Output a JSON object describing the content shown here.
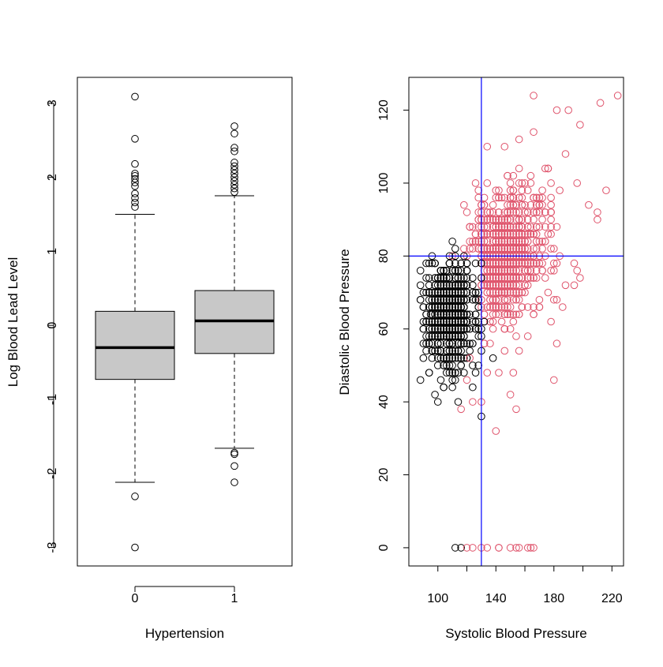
{
  "chart_data": [
    {
      "type": "box",
      "xlabel": "Hypertension",
      "ylabel": "Log Blood Lead Level",
      "ylim": [
        -3.25,
        3.35
      ],
      "yticks": [
        -3,
        -2,
        -1,
        0,
        1,
        2,
        3
      ],
      "ytick_labels": [
        "-3",
        "-2",
        "-1",
        "0",
        "1",
        "2",
        "3"
      ],
      "categories": [
        "0",
        "1"
      ],
      "box_fill": "#c8c8c8",
      "boxes": [
        {
          "category": "0",
          "whisker_low": -2.12,
          "q1": -0.73,
          "median": -0.3,
          "q3": 0.19,
          "whisker_high": 1.5,
          "outliers": [
            3.09,
            2.52,
            2.18,
            2.05,
            2.02,
            1.98,
            1.93,
            1.88,
            1.78,
            1.72,
            1.66,
            1.6,
            -2.31,
            -3.0
          ]
        },
        {
          "category": "1",
          "whisker_low": -1.66,
          "q1": -0.38,
          "median": 0.06,
          "q3": 0.47,
          "whisker_high": 1.75,
          "outliers": [
            2.69,
            2.59,
            2.4,
            2.35,
            2.2,
            2.15,
            2.1,
            2.05,
            2.0,
            1.95,
            1.9,
            1.85,
            1.8,
            -1.72,
            -1.74,
            -1.9,
            -2.12
          ]
        }
      ]
    },
    {
      "type": "scatter",
      "xlabel": "Systolic Blood Pressure",
      "ylabel": "Diastolic Blood Pressure",
      "xlim": [
        80,
        228
      ],
      "ylim": [
        -5,
        129
      ],
      "xticks": [
        100,
        140,
        180,
        220
      ],
      "xtick_labels": [
        "100",
        "140",
        "180",
        "220"
      ],
      "xticks_minor": [
        120,
        160,
        200
      ],
      "yticks": [
        0,
        20,
        40,
        60,
        80,
        100,
        120
      ],
      "ytick_labels": [
        "0",
        "20",
        "40",
        "60",
        "80",
        "100",
        "120"
      ],
      "reference_lines": {
        "x": 130,
        "y": 80,
        "color": "#0000ff"
      },
      "series_colors": {
        "not_hypertensive": "#000000",
        "hypertensive": "#df536b"
      },
      "series": [
        {
          "group": "0",
          "color": "#000000",
          "points": [
            [
              88,
              68
            ],
            [
              90,
              60
            ],
            [
              92,
              56
            ],
            [
              94,
              48
            ],
            [
              95,
              64
            ],
            [
              96,
              52
            ],
            [
              98,
              42
            ],
            [
              100,
              40
            ],
            [
              102,
              46
            ],
            [
              104,
              44
            ],
            [
              106,
              50
            ],
            [
              108,
              54
            ],
            [
              110,
              44
            ],
            [
              112,
              46
            ],
            [
              114,
              40
            ],
            [
              116,
              50
            ],
            [
              118,
              48
            ],
            [
              120,
              52
            ],
            [
              124,
              44
            ],
            [
              126,
              48
            ],
            [
              128,
              50
            ],
            [
              130,
              36
            ],
            [
              138,
              52
            ],
            [
              112,
              0
            ],
            [
              116,
              0
            ],
            [
              100,
              70
            ],
            [
              104,
              76
            ],
            [
              108,
              80
            ],
            [
              110,
              84
            ],
            [
              112,
              82
            ],
            [
              116,
              78
            ],
            [
              120,
              74
            ],
            [
              124,
              70
            ],
            [
              126,
              64
            ],
            [
              128,
              66
            ],
            [
              130,
              60
            ],
            [
              132,
              62
            ]
          ]
        },
        {
          "group": "1",
          "color": "#df536b",
          "points": [
            [
              166,
              124
            ],
            [
              224,
              124
            ],
            [
              212,
              122
            ],
            [
              182,
              120
            ],
            [
              190,
              120
            ],
            [
              198,
              116
            ],
            [
              146,
              110
            ],
            [
              156,
              112
            ],
            [
              166,
              114
            ],
            [
              176,
              104
            ],
            [
              188,
              108
            ],
            [
              178,
              100
            ],
            [
              184,
              98
            ],
            [
              196,
              100
            ],
            [
              204,
              94
            ],
            [
              210,
              92
            ],
            [
              210,
              90
            ],
            [
              216,
              98
            ],
            [
              194,
              78
            ],
            [
              196,
              76
            ],
            [
              198,
              74
            ],
            [
              194,
              72
            ],
            [
              188,
              72
            ],
            [
              184,
              80
            ],
            [
              180,
              76
            ],
            [
              176,
              70
            ],
            [
              186,
              66
            ],
            [
              178,
              62
            ],
            [
              182,
              56
            ],
            [
              180,
              46
            ],
            [
              170,
              66
            ],
            [
              162,
              58
            ],
            [
              156,
              54
            ],
            [
              152,
              48
            ],
            [
              150,
              42
            ],
            [
              154,
              38
            ],
            [
              140,
              32
            ],
            [
              134,
              48
            ],
            [
              130,
              40
            ],
            [
              116,
              38
            ],
            [
              120,
              46
            ],
            [
              124,
              40
            ],
            [
              122,
              52
            ],
            [
              142,
              0
            ],
            [
              124,
              0
            ],
            [
              120,
              0
            ],
            [
              130,
              0
            ],
            [
              134,
              0
            ],
            [
              142,
              0
            ],
            [
              150,
              0
            ],
            [
              154,
              0
            ],
            [
              156,
              0
            ],
            [
              162,
              0
            ],
            [
              164,
              0
            ],
            [
              166,
              0
            ]
          ]
        }
      ]
    }
  ]
}
